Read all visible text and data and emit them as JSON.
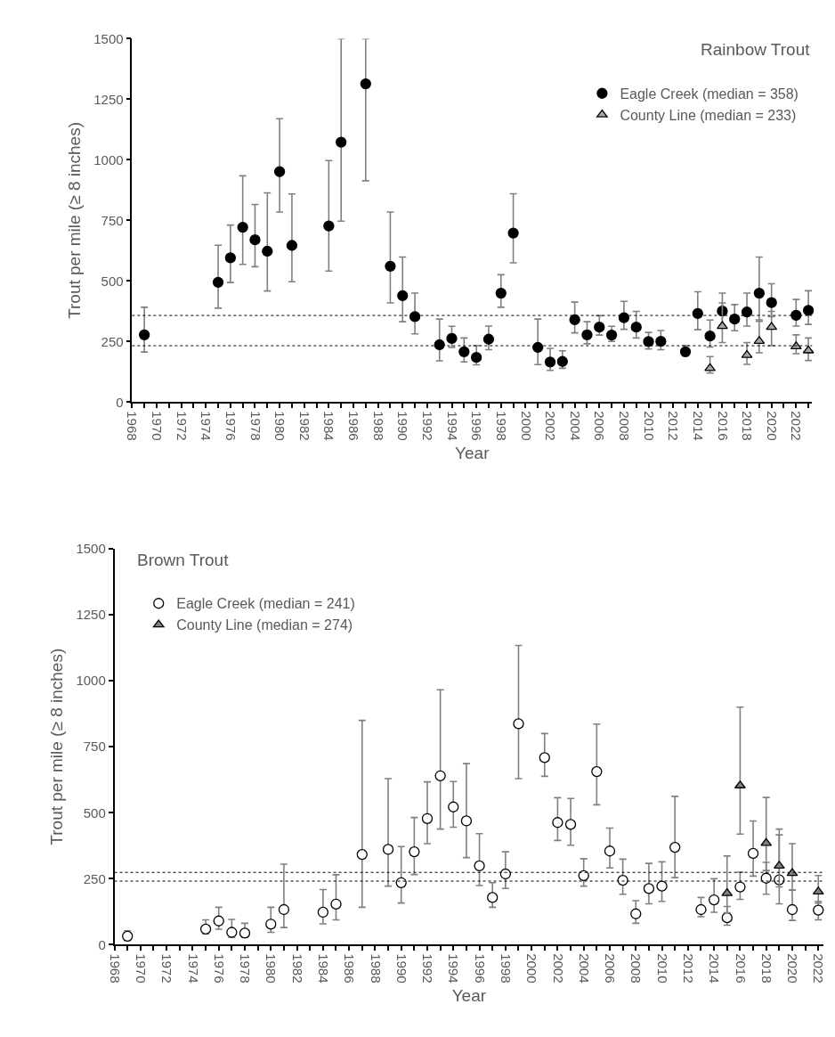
{
  "chart_data": [
    {
      "type": "scatter",
      "title": "Rainbow Trout",
      "xlabel": "Year",
      "ylabel": "Trout per mile (≥ 8 inches)",
      "legend": "top right",
      "xlim": [
        1968,
        2023.3
      ],
      "ylim": [
        0,
        1500
      ],
      "yticks": [
        0,
        250,
        500,
        750,
        1000,
        1250,
        1500
      ],
      "xticks": [
        1968,
        {
          "value": 1969,
          "label": null
        },
        1970,
        {
          "value": 1971,
          "label": null
        },
        1972,
        {
          "value": 1973,
          "label": null
        },
        1974,
        {
          "value": 1975,
          "label": null
        },
        1976,
        {
          "value": 1977,
          "label": null
        },
        1978,
        {
          "value": 1979,
          "label": null
        },
        1980,
        {
          "value": 1981,
          "label": null
        },
        1982,
        {
          "value": 1983,
          "label": null
        },
        1984,
        {
          "value": 1985,
          "label": null
        },
        1986,
        {
          "value": 1987,
          "label": null
        },
        1988,
        {
          "value": 1989,
          "label": null
        },
        1990,
        {
          "value": 1991,
          "label": null
        },
        1992,
        {
          "value": 1993,
          "label": null
        },
        1994,
        {
          "value": 1995,
          "label": null
        },
        1996,
        {
          "value": 1997,
          "label": null
        },
        1998,
        {
          "value": 1999,
          "label": null
        },
        2000,
        {
          "value": 2001,
          "label": null
        },
        2002,
        {
          "value": 2003,
          "label": null
        },
        2004,
        {
          "value": 2005,
          "label": null
        },
        2006,
        {
          "value": 2007,
          "label": null
        },
        2008,
        {
          "value": 2009,
          "label": null
        },
        2010,
        {
          "value": 2011,
          "label": null
        },
        2012,
        {
          "value": 2013,
          "label": null
        },
        2014,
        {
          "value": 2015,
          "label": null
        },
        2016,
        {
          "value": 2017,
          "label": null
        },
        2018,
        {
          "value": 2019,
          "label": null
        },
        2020,
        {
          "value": 2021,
          "label": null
        },
        2022,
        {
          "value": 2023,
          "label": null
        }
      ],
      "series": [
        {
          "name": "Eagle Creek (median = 358)",
          "color": "#000000",
          "marker": "circle",
          "x": [
            1969,
            1975,
            1976,
            1977,
            1978,
            1979,
            1980,
            1981,
            1984,
            1985,
            1987,
            1989,
            1990,
            1991,
            1993,
            1994,
            1995,
            1996,
            1997,
            1998,
            1999,
            2001,
            2002,
            2003,
            2004,
            2005,
            2006,
            2007,
            2008,
            2009,
            2010,
            2011,
            2013,
            2014,
            2015,
            2016,
            2017,
            2018,
            2019,
            2020,
            2022,
            2023
          ],
          "values": [
            278,
            495,
            596,
            722,
            670,
            623,
            952,
            647,
            727,
            1073,
            1314,
            561,
            440,
            353,
            237,
            263,
            208,
            185,
            260,
            450,
            698,
            226,
            166,
            168,
            340,
            278,
            310,
            277,
            349,
            310,
            250,
            251,
            208,
            366,
            273,
            376,
            343,
            372,
            450,
            411,
            359,
            379
          ],
          "errors": [
            [
              207,
              392
            ],
            [
              388,
              648
            ],
            [
              494,
              731
            ],
            [
              569,
              934
            ],
            [
              559,
              816
            ],
            [
              459,
              864
            ],
            [
              785,
              1170
            ],
            [
              497,
              859
            ],
            [
              541,
              997
            ],
            [
              747,
              1500
            ],
            [
              914,
              1500
            ],
            [
              410,
              785
            ],
            [
              332,
              599
            ],
            [
              282,
              450
            ],
            [
              171,
              343
            ],
            [
              226,
              313
            ],
            [
              166,
              265
            ],
            [
              154,
              233
            ],
            [
              217,
              314
            ],
            [
              392,
              526
            ],
            [
              575,
              860
            ],
            [
              155,
              343
            ],
            [
              131,
              222
            ],
            [
              140,
              212
            ],
            [
              286,
              413
            ],
            [
              241,
              332
            ],
            [
              277,
              357
            ],
            [
              251,
              313
            ],
            [
              301,
              416
            ],
            [
              265,
              375
            ],
            [
              220,
              288
            ],
            [
              217,
              296
            ],
            [
              191,
              234
            ],
            [
              299,
              456
            ],
            [
              228,
              339
            ],
            [
              318,
              450
            ],
            [
              295,
              403
            ],
            [
              314,
              450
            ],
            [
              340,
              599
            ],
            [
              353,
              489
            ],
            [
              314,
              424
            ],
            [
              321,
              460
            ]
          ]
        },
        {
          "name": "County Line (median = 233)",
          "color": "#a6a6a6",
          "marker": "triangle",
          "x": [
            2015,
            2016,
            2018,
            2019,
            2020,
            2022,
            2023
          ],
          "values": [
            140,
            314,
            194,
            252,
            310,
            230,
            213
          ],
          "errors": [
            [
              120,
              188
            ],
            [
              246,
              410
            ],
            [
              156,
              246
            ],
            [
              204,
              334
            ],
            [
              233,
              375
            ],
            [
              200,
              278
            ],
            [
              172,
              265
            ]
          ]
        }
      ],
      "ref_lines": [
        {
          "axis": "y",
          "value": 358,
          "color": "#000000",
          "line_style": "dotted"
        },
        {
          "axis": "y",
          "value": 233,
          "color": "#000000",
          "line_style": "dotted"
        }
      ]
    },
    {
      "type": "scatter",
      "title": "Brown Trout",
      "xlabel": "Year",
      "ylabel": "Trout per mile (≥ 8 inches)",
      "legend": "top left",
      "xlim": [
        1968,
        2022.4
      ],
      "ylim": [
        0,
        1500
      ],
      "yticks": [
        0,
        250,
        500,
        750,
        1000,
        1250,
        1500
      ],
      "xticks": [
        1968,
        {
          "value": 1969,
          "label": null
        },
        1970,
        {
          "value": 1971,
          "label": null
        },
        1972,
        {
          "value": 1973,
          "label": null
        },
        1974,
        {
          "value": 1975,
          "label": null
        },
        1976,
        {
          "value": 1977,
          "label": null
        },
        1978,
        {
          "value": 1979,
          "label": null
        },
        1980,
        {
          "value": 1981,
          "label": null
        },
        1982,
        {
          "value": 1983,
          "label": null
        },
        1984,
        {
          "value": 1985,
          "label": null
        },
        1986,
        {
          "value": 1987,
          "label": null
        },
        1988,
        {
          "value": 1989,
          "label": null
        },
        1990,
        {
          "value": 1991,
          "label": null
        },
        1992,
        {
          "value": 1993,
          "label": null
        },
        1994,
        {
          "value": 1995,
          "label": null
        },
        1996,
        {
          "value": 1997,
          "label": null
        },
        1998,
        {
          "value": 1999,
          "label": null
        },
        2000,
        {
          "value": 2001,
          "label": null
        },
        2002,
        {
          "value": 2003,
          "label": null
        },
        2004,
        {
          "value": 2005,
          "label": null
        },
        2006,
        {
          "value": 2007,
          "label": null
        },
        2008,
        {
          "value": 2009,
          "label": null
        },
        2010,
        {
          "value": 2011,
          "label": null
        },
        2012,
        {
          "value": 2013,
          "label": null
        },
        2014,
        {
          "value": 2015,
          "label": null
        },
        2016,
        {
          "value": 2017,
          "label": null
        },
        2018,
        {
          "value": 2019,
          "label": null
        },
        2020,
        {
          "value": 2021,
          "label": null
        },
        2022
      ],
      "series": [
        {
          "name": "Eagle Creek (median = 241)",
          "color": "#ffffff",
          "marker": "circle",
          "x": [
            1969,
            1975,
            1976,
            1977,
            1978,
            1980,
            1981,
            1984,
            1985,
            1987,
            1989,
            1990,
            1991,
            1992,
            1993,
            1994,
            1995,
            1996,
            1997,
            1998,
            1999,
            2001,
            2002,
            2003,
            2004,
            2005,
            2006,
            2007,
            2008,
            2009,
            2010,
            2011,
            2013,
            2014,
            2015,
            2016,
            2017,
            2018,
            2019,
            2020,
            2022
          ],
          "values": [
            32,
            59,
            90,
            47,
            44,
            78,
            133,
            123,
            154,
            342,
            361,
            235,
            352,
            478,
            640,
            522,
            469,
            299,
            179,
            268,
            837,
            709,
            463,
            456,
            262,
            656,
            355,
            244,
            117,
            213,
            222,
            369,
            133,
            170,
            102,
            219,
            346,
            252,
            246,
            133,
            131
          ],
          "errors": [
            [
              16,
              53
            ],
            [
              41,
              94
            ],
            [
              59,
              142
            ],
            [
              28,
              96
            ],
            [
              28,
              81
            ],
            [
              47,
              142
            ],
            [
              65,
              305
            ],
            [
              79,
              209
            ],
            [
              94,
              265
            ],
            [
              142,
              850
            ],
            [
              222,
              629
            ],
            [
              158,
              372
            ],
            [
              266,
              482
            ],
            [
              383,
              617
            ],
            [
              438,
              966
            ],
            [
              445,
              618
            ],
            [
              330,
              686
            ],
            [
              224,
              421
            ],
            [
              142,
              235
            ],
            [
              213,
              352
            ],
            [
              629,
              1134
            ],
            [
              638,
              800
            ],
            [
              395,
              557
            ],
            [
              377,
              554
            ],
            [
              222,
              326
            ],
            [
              530,
              836
            ],
            [
              291,
              442
            ],
            [
              191,
              324
            ],
            [
              81,
              167
            ],
            [
              155,
              308
            ],
            [
              164,
              314
            ],
            [
              254,
              562
            ],
            [
              106,
              179
            ],
            [
              123,
              250
            ],
            [
              74,
              145
            ],
            [
              172,
              275
            ],
            [
              260,
              469
            ],
            [
              191,
              312
            ],
            [
              155,
              416
            ],
            [
              92,
              207
            ],
            [
              94,
              164
            ]
          ]
        },
        {
          "name": "County Line (median = 274)",
          "color": "#808080",
          "marker": "triangle",
          "x": [
            2015,
            2016,
            2018,
            2019,
            2020,
            2022
          ],
          "values": [
            195,
            603,
            385,
            299,
            271,
            201
          ],
          "errors": [
            [
              121,
              336
            ],
            [
              419,
              900
            ],
            [
              281,
              558
            ],
            [
              219,
              438
            ],
            [
              207,
              383
            ],
            [
              158,
              262
            ]
          ]
        }
      ],
      "ref_lines": [
        {
          "axis": "y",
          "value": 241,
          "color": "#000000",
          "line_style": "dotted"
        },
        {
          "axis": "y",
          "value": 274,
          "color": "#000000",
          "line_style": "dotted"
        }
      ]
    }
  ]
}
